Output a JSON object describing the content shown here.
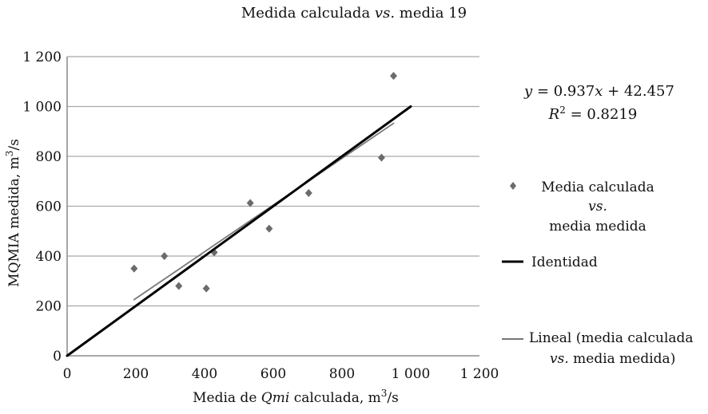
{
  "chart_data": {
    "type": "scatter",
    "title": "Medida calculada vs. media 19",
    "xlabel": "Media de Qmi calculada, m3/s",
    "ylabel": "MQMIA medida, m3/s",
    "xlim": [
      0,
      1200
    ],
    "ylim": [
      0,
      1200
    ],
    "x_ticks": [
      0,
      200,
      400,
      600,
      800,
      1000,
      1200
    ],
    "y_ticks": [
      0,
      200,
      400,
      600,
      800,
      1000,
      1200
    ],
    "x_tick_labels": [
      "0",
      "200",
      "400",
      "600",
      "800",
      "1 000",
      "1 200"
    ],
    "y_tick_labels": [
      "0",
      "200",
      "400",
      "600",
      "800",
      "1 000",
      "1 200"
    ],
    "grid": "horizontal",
    "legend_position": "right",
    "series": [
      {
        "name": "Media calculada vs. media medida",
        "kind": "scatter",
        "marker": "diamond",
        "color": "#6b6b6b",
        "points": [
          {
            "x": 195,
            "y": 350
          },
          {
            "x": 283,
            "y": 400
          },
          {
            "x": 325,
            "y": 280
          },
          {
            "x": 405,
            "y": 270
          },
          {
            "x": 428,
            "y": 415
          },
          {
            "x": 533,
            "y": 613
          },
          {
            "x": 588,
            "y": 510
          },
          {
            "x": 703,
            "y": 653
          },
          {
            "x": 915,
            "y": 795
          },
          {
            "x": 950,
            "y": 1123
          }
        ]
      },
      {
        "name": "Identidad",
        "kind": "line",
        "color": "#000000",
        "points": [
          {
            "x": 0,
            "y": 0
          },
          {
            "x": 1000,
            "y": 1000
          }
        ]
      },
      {
        "name": "Lineal (media calculada vs. media medida)",
        "kind": "trendline",
        "color": "#777777",
        "points": [
          {
            "x": 195,
            "y": 225.2
          },
          {
            "x": 950,
            "y": 932.6
          }
        ]
      }
    ],
    "annotation": {
      "equation": "y = 0.937x + 42.457",
      "r2": "R2 = 0.8219"
    }
  },
  "title_parts": {
    "a": "Medida calculada ",
    "b": "vs.",
    "c": " media 19"
  },
  "xlabel_parts": {
    "a": "Media de ",
    "b": "Qmi",
    "c": " calculada, m",
    "sup": "3",
    "d": "/s"
  },
  "ylabel_parts": {
    "a": "MQMIA medida, m",
    "sup": "3",
    "b": "/s"
  },
  "equation_parts": {
    "y": "y",
    "mid": " = 0.937",
    "x": "x",
    "tail": " + 42.457"
  },
  "r2_parts": {
    "R": "R",
    "sup": "2",
    "tail": " = 0.8219"
  },
  "legend": {
    "scatter_line1": "Media calculada",
    "scatter_line2": "vs.",
    "scatter_line3": "media medida",
    "identity": "Identidad",
    "trend_line1": "Lineal (media calculada",
    "trend_vs": "vs.",
    "trend_line2": " media medida)"
  }
}
